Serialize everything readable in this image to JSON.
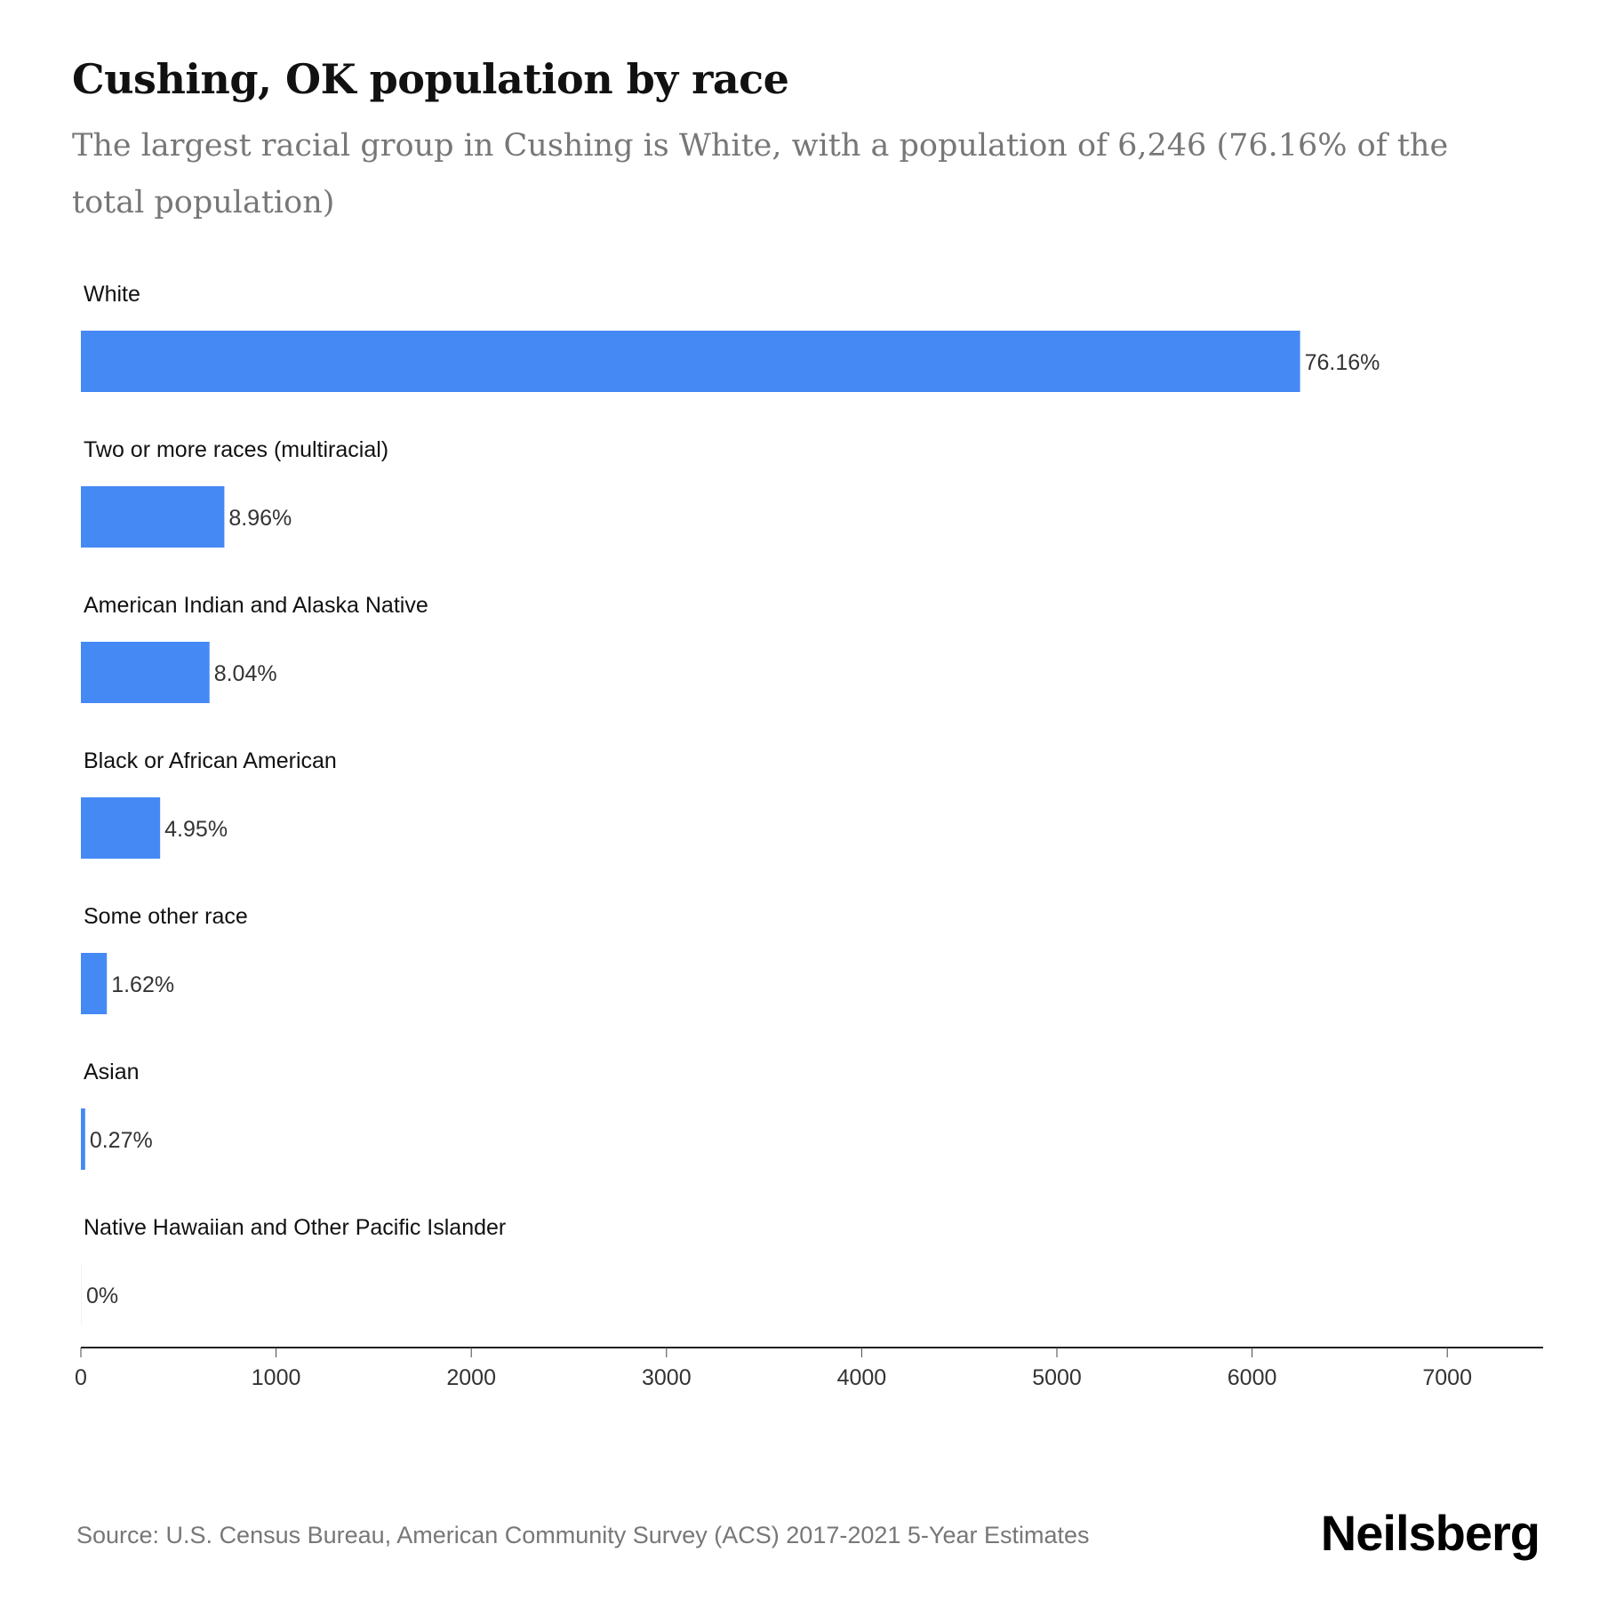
{
  "title": "Cushing, OK population by race",
  "subtitle": "The largest racial group in Cushing is White, with a population of 6,246 (76.16% of the total population)",
  "source": "Source: U.S. Census Bureau, American Community Survey (ACS) 2017-2021 5-Year Estimates",
  "logo": "Neilsberg",
  "chart_data": {
    "type": "bar",
    "orientation": "horizontal",
    "title": "Cushing, OK population by race",
    "categories": [
      "White",
      "Two or more races (multiracial)",
      "American Indian and Alaska Native",
      "Black or African American",
      "Some other race",
      "Asian",
      "Native Hawaiian and Other Pacific Islander"
    ],
    "values": [
      6246,
      735,
      659,
      406,
      133,
      22,
      0
    ],
    "labels": [
      "76.16%",
      "8.96%",
      "8.04%",
      "4.95%",
      "1.62%",
      "0.27%",
      "0%"
    ],
    "xticks": [
      0,
      1000,
      2000,
      3000,
      4000,
      5000,
      6000,
      7000
    ],
    "xlim": [
      0,
      7500
    ],
    "bar_color": "#4589f5",
    "grid": false
  }
}
